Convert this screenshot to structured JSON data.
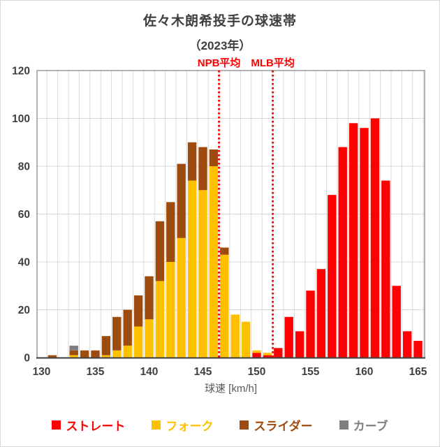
{
  "title": "佐々木朗希投手の球速帯",
  "subtitle": "（2023年）",
  "chart_data": {
    "type": "bar",
    "subtype": "stacked-histogram",
    "title": "佐々木朗希投手の球速帯",
    "subtitle": "（2023年）",
    "xlabel": "球速 [km/h]",
    "ylabel": "",
    "ylim": [
      0,
      120
    ],
    "yticks": [
      0,
      20,
      40,
      60,
      80,
      100,
      120
    ],
    "xticks": [
      130,
      135,
      140,
      145,
      150,
      155,
      160,
      165
    ],
    "grid": true,
    "legend_position": "bottom",
    "categories": [
      130,
      131,
      132,
      133,
      134,
      135,
      136,
      137,
      138,
      139,
      140,
      141,
      142,
      143,
      144,
      145,
      146,
      147,
      148,
      149,
      150,
      151,
      152,
      153,
      154,
      155,
      156,
      157,
      158,
      159,
      160,
      161,
      162,
      163,
      164,
      165
    ],
    "stack_order_bottom_to_top": [
      "ストレート",
      "フォーク",
      "スライダー",
      "カーブ"
    ],
    "series": [
      {
        "name": "ストレート",
        "color": "#ff0000",
        "values": [
          0,
          0,
          0,
          0,
          0,
          0,
          0,
          0,
          0,
          0,
          0,
          0,
          0,
          0,
          0,
          0,
          0,
          0,
          0,
          0,
          2,
          1,
          4,
          17,
          11,
          28,
          37,
          68,
          88,
          98,
          96,
          100,
          74,
          30,
          11,
          7
        ]
      },
      {
        "name": "フォーク",
        "color": "#ffc000",
        "values": [
          0,
          0,
          0,
          1,
          0,
          0,
          1,
          3,
          5,
          13,
          16,
          32,
          40,
          50,
          74,
          70,
          80,
          43,
          18,
          15,
          1,
          1,
          0,
          0,
          0,
          0,
          0,
          0,
          0,
          0,
          0,
          0,
          0,
          0,
          0,
          0
        ]
      },
      {
        "name": "スライダー",
        "color": "#9e4b0f",
        "values": [
          0,
          1,
          0,
          2,
          3,
          3,
          8,
          14,
          15,
          13,
          18,
          25,
          25,
          31,
          16,
          18,
          7,
          3,
          0,
          0,
          0,
          0,
          0,
          0,
          0,
          0,
          0,
          0,
          0,
          0,
          0,
          0,
          0,
          0,
          0,
          0
        ]
      },
      {
        "name": "カーブ",
        "color": "#7f7f7f",
        "values": [
          0,
          0,
          0,
          2,
          0,
          0,
          0,
          0,
          0,
          0,
          0,
          0,
          0,
          0,
          0,
          0,
          0,
          0,
          0,
          0,
          0,
          0,
          0,
          0,
          0,
          0,
          0,
          0,
          0,
          0,
          0,
          0,
          0,
          0,
          0,
          0
        ]
      }
    ],
    "ref_lines": [
      {
        "label": "NPB平均",
        "x": 146.5,
        "color": "#ff0000",
        "style": "dotted"
      },
      {
        "label": "MLB平均",
        "x": 151.5,
        "color": "#ff0000",
        "style": "dotted"
      }
    ]
  },
  "colors": {
    "title_text": "#3f3f3f",
    "axis_text": "#3f3f3f",
    "axis_line": "#808080",
    "gridline": "#d9d9d9",
    "ref_line": "#ff0000"
  }
}
